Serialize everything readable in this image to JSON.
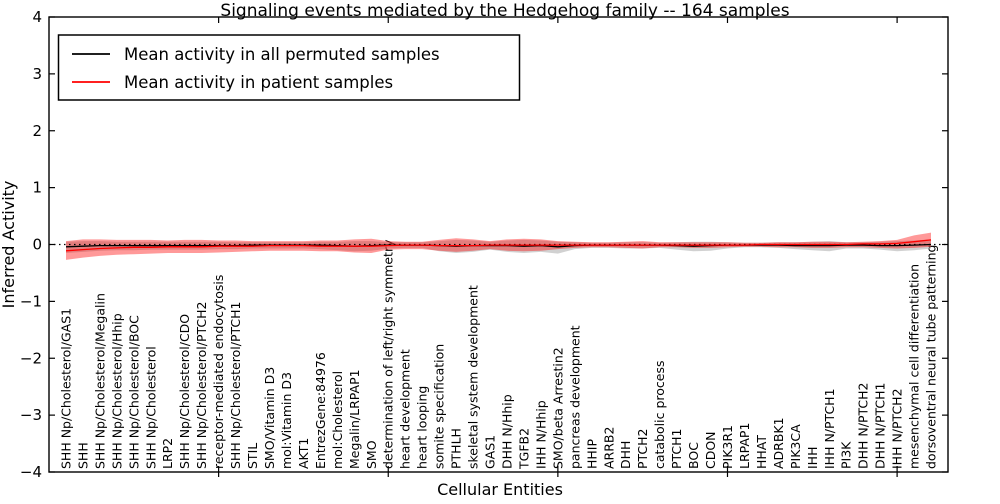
{
  "chart_data": {
    "type": "line",
    "title": "Signaling events mediated by the Hedgehog family -- 164 samples",
    "xlabel": "Cellular Entities",
    "ylabel": "Inferred Activity",
    "ylim": [
      -4,
      4
    ],
    "xlim": [
      0,
      53
    ],
    "grid": false,
    "yticks": [
      4,
      3,
      2,
      1,
      0,
      -1,
      -2,
      -3,
      -4
    ],
    "ytick_labels": [
      "4",
      "3",
      "2",
      "1",
      "0",
      "−1",
      "−2",
      "−3",
      "−4"
    ],
    "xticks": [
      10,
      20,
      30,
      40,
      50
    ],
    "legend_position": "upper left",
    "legend": [
      {
        "label": "Mean activity in all permuted samples",
        "color": "#000000"
      },
      {
        "label": "Mean activity in patient samples",
        "color": "#ff0000"
      }
    ],
    "categories": [
      "SHH Np/Cholesterol/GAS1",
      "SHH",
      "SHH Np/Cholesterol/Megalin",
      "SHH Np/Cholesterol/Hhip",
      "SHH Np/Cholesterol/BOC",
      "SHH Np/Cholesterol",
      "LRP2",
      "SHH Np/Cholesterol/CDO",
      "SHH Np/Cholesterol/PTCH2",
      "receptor-mediated endocytosis",
      "SHH Np/Cholesterol/PTCH1",
      "STIL",
      "SMO/Vitamin D3",
      "mol:Vitamin D3",
      "AKT1",
      "EntrezGene:84976",
      "mol:Cholesterol",
      "Megalin/LRPAP1",
      "SMO",
      "determination of left/right symmetry",
      "heart development",
      "heart looping",
      "somite specification",
      "PTHLH",
      "skeletal system development",
      "GAS1",
      "DHH N/Hhip",
      "TGFB2",
      "IHH N/Hhip",
      "SMO/beta Arrestin2",
      "pancreas development",
      "HHIP",
      "ARRB2",
      "DHH",
      "PTCH2",
      "catabolic process",
      "PTCH1",
      "BOC",
      "CDON",
      "PIK3R1",
      "LRPAP1",
      "HHAT",
      "ADRBK1",
      "PIK3CA",
      "IHH",
      "IHH N/PTCH1",
      "PI3K",
      "DHH N/PTCH2",
      "DHH N/PTCH1",
      "IHH N/PTCH2",
      "mesenchymal cell differentiation",
      "dorsoventral neural tube patterning"
    ],
    "series": [
      {
        "name": "Mean activity in all permuted samples",
        "color": "#000000",
        "values": [
          -0.04,
          -0.03,
          -0.02,
          -0.02,
          -0.02,
          -0.02,
          -0.02,
          -0.02,
          -0.02,
          -0.02,
          -0.02,
          -0.01,
          -0.01,
          -0.01,
          -0.01,
          -0.01,
          -0.02,
          -0.03,
          -0.02,
          -0.01,
          -0.01,
          -0.01,
          -0.02,
          -0.03,
          -0.02,
          -0.02,
          -0.02,
          -0.03,
          -0.02,
          -0.04,
          -0.02,
          -0.01,
          -0.01,
          -0.01,
          -0.01,
          -0.01,
          -0.02,
          -0.03,
          -0.02,
          -0.01,
          -0.01,
          -0.01,
          -0.01,
          -0.02,
          -0.02,
          -0.02,
          -0.01,
          -0.01,
          -0.02,
          -0.02,
          -0.01,
          0.0
        ]
      },
      {
        "name": "Mean activity in patient samples",
        "color": "#ff0000",
        "values": [
          -0.11,
          -0.09,
          -0.07,
          -0.06,
          -0.05,
          -0.05,
          -0.04,
          -0.04,
          -0.04,
          -0.03,
          -0.03,
          -0.03,
          -0.02,
          -0.02,
          -0.02,
          -0.03,
          -0.03,
          -0.03,
          -0.03,
          -0.02,
          -0.01,
          -0.01,
          -0.02,
          -0.02,
          -0.02,
          -0.01,
          -0.01,
          -0.01,
          -0.01,
          -0.01,
          -0.01,
          -0.01,
          -0.01,
          -0.01,
          -0.01,
          -0.01,
          -0.01,
          -0.01,
          -0.01,
          -0.01,
          -0.01,
          0.0,
          0.0,
          0.0,
          0.0,
          0.0,
          0.0,
          0.01,
          0.01,
          0.02,
          0.05,
          0.08
        ]
      }
    ],
    "bands": [
      {
        "name": "Permuted samples activity range",
        "color": "#999999",
        "alpha": 0.45,
        "upper": [
          0.05,
          0.06,
          0.06,
          0.05,
          0.05,
          0.05,
          0.05,
          0.05,
          0.05,
          0.05,
          0.04,
          0.04,
          0.04,
          0.04,
          0.04,
          0.05,
          0.05,
          0.06,
          0.06,
          0.04,
          0.04,
          0.04,
          0.06,
          0.08,
          0.07,
          0.05,
          0.07,
          0.08,
          0.07,
          0.05,
          0.04,
          0.03,
          0.03,
          0.04,
          0.04,
          0.03,
          0.04,
          0.05,
          0.05,
          0.04,
          0.03,
          0.03,
          0.04,
          0.04,
          0.05,
          0.06,
          0.04,
          0.04,
          0.05,
          0.06,
          0.07,
          0.09
        ],
        "lower": [
          -0.15,
          -0.13,
          -0.11,
          -0.1,
          -0.1,
          -0.09,
          -0.09,
          -0.09,
          -0.09,
          -0.08,
          -0.08,
          -0.07,
          -0.07,
          -0.07,
          -0.07,
          -0.08,
          -0.1,
          -0.12,
          -0.11,
          -0.07,
          -0.06,
          -0.06,
          -0.12,
          -0.15,
          -0.13,
          -0.09,
          -0.13,
          -0.15,
          -0.13,
          -0.16,
          -0.08,
          -0.06,
          -0.06,
          -0.07,
          -0.07,
          -0.06,
          -0.09,
          -0.12,
          -0.11,
          -0.07,
          -0.05,
          -0.05,
          -0.06,
          -0.08,
          -0.1,
          -0.12,
          -0.07,
          -0.07,
          -0.09,
          -0.12,
          -0.1,
          -0.07
        ]
      },
      {
        "name": "Patient samples activity range",
        "color": "#ff0000",
        "alpha": 0.4,
        "upper": [
          0.06,
          0.09,
          0.09,
          0.08,
          0.08,
          0.08,
          0.07,
          0.08,
          0.08,
          0.07,
          0.07,
          0.06,
          0.06,
          0.06,
          0.06,
          0.07,
          0.07,
          0.09,
          0.1,
          0.06,
          0.05,
          0.05,
          0.08,
          0.11,
          0.09,
          0.06,
          0.09,
          0.1,
          0.09,
          0.06,
          0.05,
          0.04,
          0.04,
          0.05,
          0.06,
          0.04,
          0.04,
          0.04,
          0.04,
          0.04,
          0.03,
          0.03,
          0.04,
          0.04,
          0.05,
          0.05,
          0.04,
          0.05,
          0.06,
          0.08,
          0.16,
          0.21
        ],
        "lower": [
          -0.27,
          -0.23,
          -0.2,
          -0.18,
          -0.17,
          -0.16,
          -0.15,
          -0.15,
          -0.15,
          -0.14,
          -0.13,
          -0.12,
          -0.11,
          -0.11,
          -0.11,
          -0.12,
          -0.12,
          -0.14,
          -0.15,
          -0.09,
          -0.08,
          -0.08,
          -0.11,
          -0.13,
          -0.11,
          -0.08,
          -0.11,
          -0.12,
          -0.11,
          -0.08,
          -0.06,
          -0.05,
          -0.05,
          -0.06,
          -0.07,
          -0.05,
          -0.05,
          -0.06,
          -0.06,
          -0.05,
          -0.04,
          -0.04,
          -0.05,
          -0.05,
          -0.06,
          -0.06,
          -0.05,
          -0.05,
          -0.06,
          -0.07,
          -0.06,
          -0.04
        ]
      }
    ],
    "zero_line": {
      "y": 0,
      "style": "dotted",
      "color": "#000000"
    }
  }
}
